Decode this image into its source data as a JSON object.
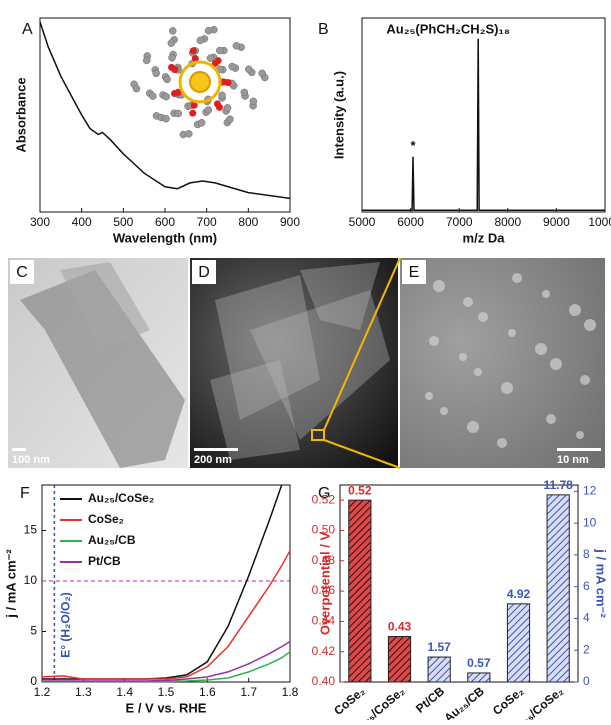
{
  "images": [
    {
      "label": "C",
      "scale_bar": "100 nm"
    },
    {
      "label": "D",
      "scale_bar": "200 nm"
    },
    {
      "label": "E",
      "scale_bar": "10 nm"
    }
  ],
  "chart_data": [
    {
      "type": "line",
      "panel_label": "A",
      "xlabel": "Wavelength (nm)",
      "ylabel": "Absorbance",
      "x": [
        300,
        320,
        350,
        380,
        400,
        420,
        440,
        450,
        470,
        500,
        550,
        600,
        630,
        660,
        690,
        720,
        800,
        900
      ],
      "values": [
        0.98,
        0.85,
        0.7,
        0.58,
        0.5,
        0.43,
        0.4,
        0.41,
        0.37,
        0.3,
        0.2,
        0.13,
        0.12,
        0.15,
        0.16,
        0.15,
        0.1,
        0.07
      ],
      "color": "#111111",
      "xlim": [
        300,
        900
      ],
      "xticks": [
        300,
        400,
        500,
        600,
        700,
        800,
        900
      ],
      "ylim": [
        0,
        1
      ]
    },
    {
      "type": "line",
      "panel_label": "B",
      "xlabel": "m/z Da",
      "ylabel": "Intensity (a.u.)",
      "annotations": [
        "Au₂₅(PhCH₂CH₂S)₁₈",
        "*"
      ],
      "x": [
        5000,
        6030,
        6050,
        6070,
        7370,
        7390,
        7410,
        10000
      ],
      "values": [
        0.01,
        0.01,
        0.32,
        0.01,
        0.01,
        1.0,
        0.01,
        0.01
      ],
      "color": "#111111",
      "xlim": [
        5000,
        10000
      ],
      "xticks": [
        5000,
        6000,
        7000,
        8000,
        9000,
        10000
      ],
      "ylim": [
        0,
        1.12
      ]
    },
    {
      "type": "line",
      "panel_label": "F",
      "xlabel": "E / V vs. RHE",
      "ylabel": "j / mA cm⁻²",
      "annotations": [
        "E° (H₂O/O₂)"
      ],
      "x": [
        1.2,
        1.25,
        1.3,
        1.35,
        1.4,
        1.45,
        1.5,
        1.55,
        1.6,
        1.65,
        1.7,
        1.75,
        1.78,
        1.8
      ],
      "series": [
        {
          "name": "Au₂₅/CoSe₂",
          "color": "#111111",
          "values": [
            0.3,
            0.3,
            0.3,
            0.3,
            0.3,
            0.3,
            0.4,
            0.7,
            2,
            5.5,
            10.5,
            16,
            19.5,
            null
          ]
        },
        {
          "name": "CoSe₂",
          "color": "#e8312a",
          "values": [
            0.5,
            0.6,
            0.3,
            0.3,
            0.3,
            0.3,
            0.3,
            0.5,
            1.5,
            3.5,
            6.5,
            9.5,
            11.5,
            13
          ]
        },
        {
          "name": "Au₂₅/CB",
          "color": "#2db34a",
          "values": [
            0.05,
            0.05,
            0.05,
            0.05,
            0.05,
            0.05,
            0.05,
            0.1,
            0.2,
            0.4,
            1,
            1.8,
            2.4,
            3
          ]
        },
        {
          "name": "Pt/CB",
          "color": "#9b2fa0",
          "values": [
            0.1,
            0.1,
            0.1,
            0.1,
            0.1,
            0.1,
            0.15,
            0.3,
            0.5,
            1,
            1.8,
            2.8,
            3.5,
            4
          ]
        }
      ],
      "xlim": [
        1.2,
        1.8
      ],
      "xticks": [
        1.2,
        1.3,
        1.4,
        1.5,
        1.6,
        1.7,
        1.8
      ],
      "ylim": [
        0,
        19.5
      ],
      "yticks": [
        0,
        5,
        10,
        15
      ],
      "hline": 10,
      "hline_color": "#c020c0",
      "vline": 1.23,
      "vline_color": "#3050c0",
      "legend": "upper left"
    },
    {
      "type": "bar",
      "panel_label": "G",
      "ylabel": "Overpotential / V",
      "y2label": "j / mA cm⁻²",
      "categories": [
        "CoSe₂",
        "Au₂₅/CoSe₂",
        "Pt/CB",
        "Au₂₅/CB",
        "CoSe₂",
        "Au₂₅/CoSe₂"
      ],
      "series": [
        {
          "color": "#d42a2a",
          "values": [
            0.52,
            0.43,
            null,
            null,
            null,
            null
          ]
        },
        {
          "color": "#3a55b8",
          "axis": "y2",
          "values": [
            null,
            null,
            1.57,
            0.57,
            4.92,
            11.78
          ]
        }
      ],
      "ylim": [
        0.4,
        0.53
      ],
      "yticks": [
        {
          "value": 0.4,
          "label": "0.40"
        },
        0.42,
        0.44,
        0.46,
        0.48,
        {
          "value": 0.5,
          "label": "0.50"
        },
        0.52
      ],
      "y2lim": [
        0,
        12.4
      ],
      "y2ticks": [
        0,
        2,
        4,
        6,
        8,
        10,
        12
      ]
    }
  ]
}
